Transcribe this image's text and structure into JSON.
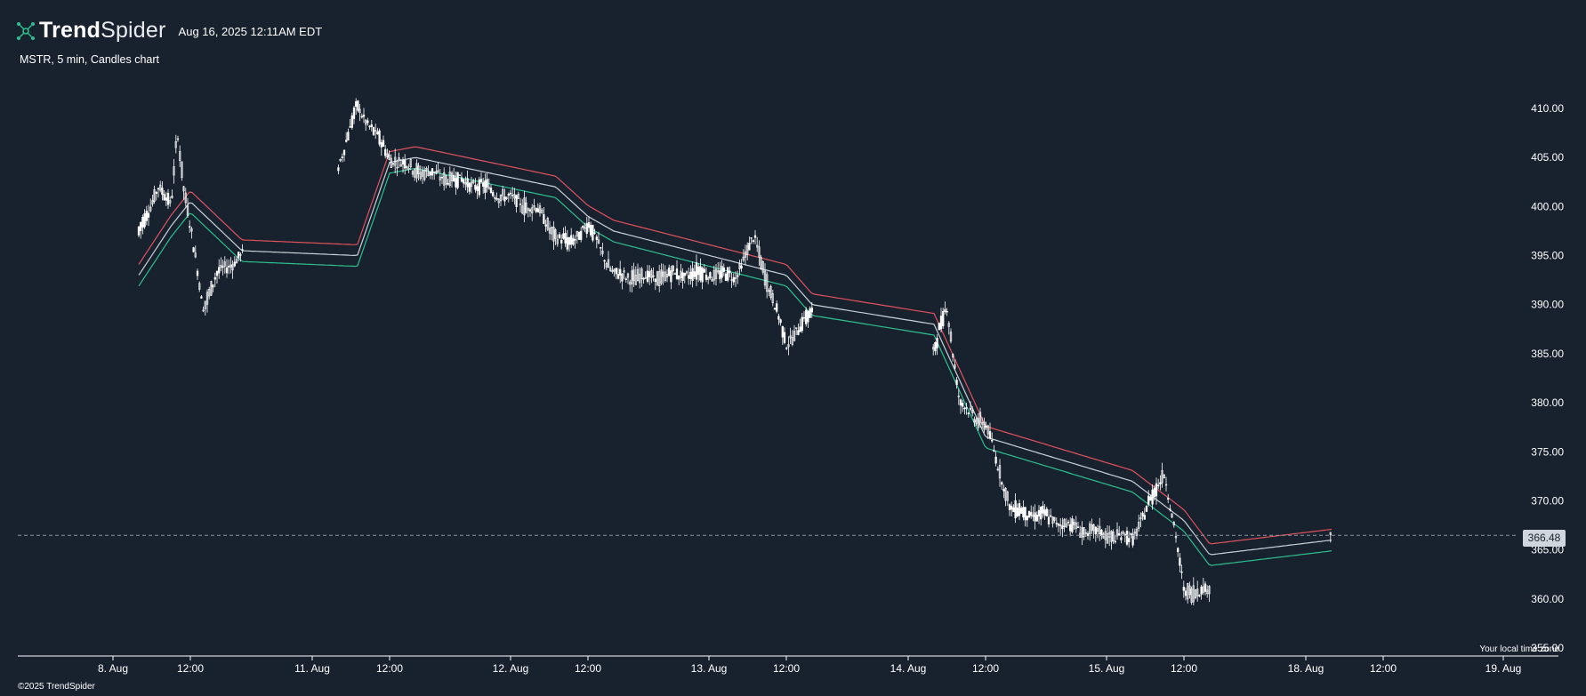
{
  "header": {
    "brand_bold": "Trend",
    "brand_light": "Spider",
    "datetime": "Aug 16, 2025 12:11AM EDT",
    "subtitle": "MSTR, 5 min, Candles chart"
  },
  "footer": {
    "copyright": "©2025 TrendSpider",
    "timezone_label": "Your local time zone"
  },
  "colors": {
    "background": "#18222e",
    "candle": "#ffffff",
    "band_upper": "#e0525c",
    "band_middle": "#c8d0d8",
    "band_lower": "#2dbf8f",
    "last_price_line": "#8a949e",
    "logo_accent": "#2dbf8f"
  },
  "chart_data": {
    "type": "line",
    "title": "MSTR, 5 min, Candles chart",
    "ylim": [
      355,
      413
    ],
    "y_ticks": [
      "410.00",
      "405.00",
      "400.00",
      "395.00",
      "390.00",
      "385.00",
      "380.00",
      "375.00",
      "370.00",
      "365.00",
      "360.00",
      "355.00"
    ],
    "x_ticks": [
      "8. Aug",
      "12:00",
      "11. Aug",
      "12:00",
      "12. Aug",
      "12:00",
      "13. Aug",
      "12:00",
      "14. Aug",
      "12:00",
      "15. Aug",
      "12:00",
      "18. Aug",
      "12:00",
      "19. Aug"
    ],
    "last_price": 366.48,
    "last_price_label": "366.48",
    "grid": false,
    "legend": "none",
    "series": [
      {
        "x": [
          "8 Aug 04:00",
          "8 Aug 07:00",
          "8 Aug 09:00",
          "8 Aug 10:00",
          "8 Aug 11:00",
          "8 Aug 12:00",
          "8 Aug 14:00",
          "8 Aug 16:00",
          "8 Aug 20:00",
          "11 Aug 04:00",
          "11 Aug 07:00",
          "11 Aug 09:00",
          "11 Aug 12:00",
          "11 Aug 16:00",
          "12 Aug 04:00",
          "12 Aug 07:00",
          "12 Aug 09:00",
          "12 Aug 12:00",
          "12 Aug 16:00",
          "13 Aug 04:00",
          "13 Aug 07:00",
          "13 Aug 12:00",
          "13 Aug 16:00",
          "14 Aug 04:00",
          "14 Aug 06:00",
          "14 Aug 08:00",
          "14 Aug 12:00",
          "14 Aug 16:00",
          "15 Aug 04:00",
          "15 Aug 07:00",
          "15 Aug 09:00",
          "15 Aug 12:00",
          "15 Aug 16:00",
          "18 Aug 04:00"
        ],
        "values": [
          397,
          402,
          400,
          408,
          402,
          398,
          390,
          393,
          395,
          404,
          410,
          408,
          405,
          404,
          400,
          397,
          396,
          398,
          393,
          393,
          397,
          386,
          389,
          385,
          390,
          380,
          378,
          369,
          366,
          370,
          373,
          361,
          361,
          367
        ]
      },
      {
        "name": "",
        "x": [
          "8 Aug 04:00",
          "8 Aug 09:00",
          "8 Aug 12:00",
          "8 Aug 20:00",
          "11 Aug 07:00",
          "11 Aug 12:00",
          "11 Aug 16:00",
          "12 Aug 07:00",
          "12 Aug 12:00",
          "12 Aug 16:00",
          "13 Aug 12:00",
          "13 Aug 16:00",
          "14 Aug 04:00",
          "14 Aug 12:00",
          "15 Aug 04:00",
          "15 Aug 12:00",
          "15 Aug 16:00",
          "18 Aug 04:00"
        ],
        "values": [
          393,
          398,
          400.5,
          395.5,
          395,
          404.5,
          405,
          402,
          399,
          397.5,
          393,
          390,
          388,
          376.5,
          372,
          368,
          364.5,
          366
        ]
      }
    ]
  }
}
